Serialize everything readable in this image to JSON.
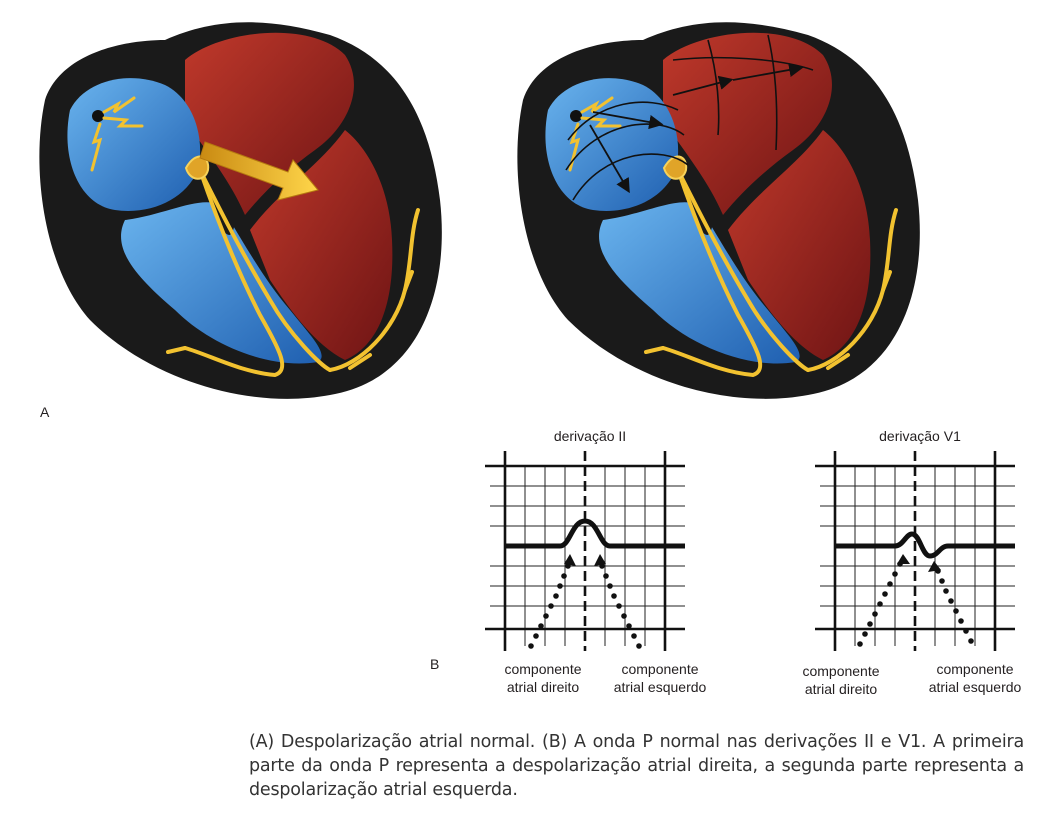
{
  "figure": {
    "panel_a_label": "A",
    "panel_b_label": "B",
    "leads": [
      {
        "title": "derivação II",
        "right_component": [
          "componente",
          "atrial direito"
        ],
        "left_component": [
          "componente",
          "atrial esquerdo"
        ]
      },
      {
        "title": "derivação V1",
        "right_component": [
          "componente",
          "atrial direito"
        ],
        "left_component": [
          "componente",
          "atrial esquerdo"
        ]
      }
    ],
    "caption": "(A) Despolarização atrial normal. (B) A onda P normal nas derivações II e V1. A primeira parte da onda P representa a despolarização atrial direita, a segunda parte representa a despolarização atrial esquerda."
  },
  "colors": {
    "right_heart_blue": "#3a86d4",
    "left_heart_red": "#a5201f",
    "conduction_yellow": "#f2c230",
    "outline_black": "#1a1a1a"
  }
}
